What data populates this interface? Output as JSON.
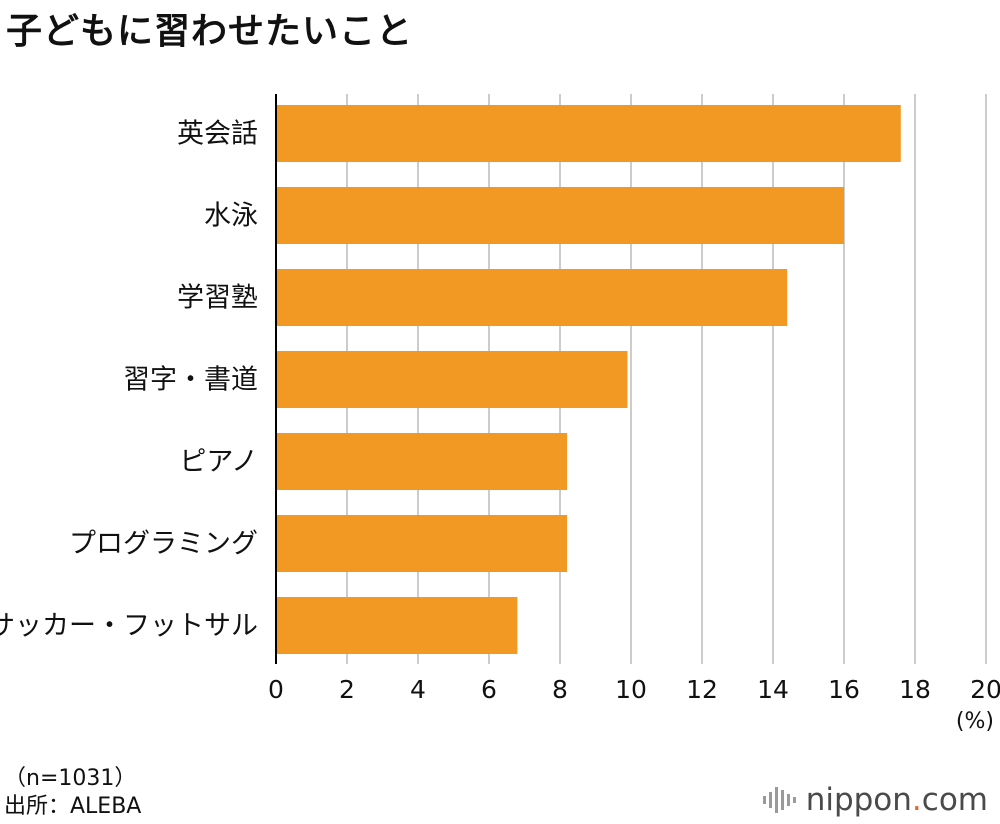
{
  "title": "子どもに習わせたいこと",
  "colors": {
    "bar": "#F29923",
    "grid": "#cccccc",
    "axis": "#000000",
    "brand_dot": "#e8642a"
  },
  "chart_data": {
    "type": "bar",
    "orientation": "horizontal",
    "title": "子どもに習わせたいこと",
    "categories": [
      "英会話",
      "水泳",
      "学習塾",
      "習字・書道",
      "ピアノ",
      "プログラミング",
      "サッカー・フットサル"
    ],
    "values": [
      17.6,
      16.0,
      14.4,
      9.9,
      8.2,
      8.2,
      6.8
    ],
    "xlim": [
      0,
      20
    ],
    "xticks": [
      0,
      2,
      4,
      6,
      8,
      10,
      12,
      14,
      16,
      18,
      20
    ],
    "xticklabels": [
      "0",
      "2",
      "4",
      "6",
      "8",
      "10",
      "12",
      "14",
      "16",
      "18",
      "20"
    ],
    "xlabel": "(%)",
    "ylabel": "",
    "grid": true
  },
  "footnote": {
    "sample": "（n=1031）",
    "source": "出所：ALEBA"
  },
  "brand": {
    "name_main": "nippon",
    "name_dot": ".",
    "name_tail": "com",
    "icon": "nippon-sound-bars-icon"
  }
}
